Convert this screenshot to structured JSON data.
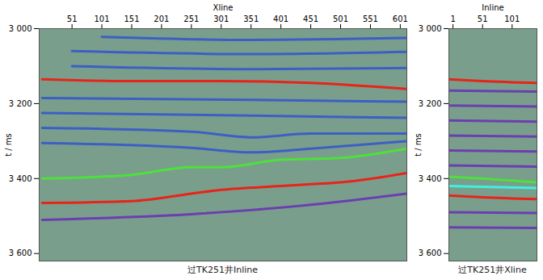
{
  "chart_data": [
    {
      "type": "line",
      "xlabel": "Xline",
      "ylabel": "t / ms",
      "caption": "过TK251井Inline",
      "color": "#7a9e8c",
      "xlim": [
        -4,
        612
      ],
      "xticks": [
        51,
        101,
        151,
        201,
        251,
        301,
        351,
        401,
        451,
        501,
        551,
        601
      ],
      "ylim": [
        3000,
        3620
      ],
      "yticks": [
        {
          "value": 3000,
          "label": "3 000"
        },
        {
          "value": 3200,
          "label": "3 200"
        },
        {
          "value": 3400,
          "label": "3 400"
        },
        {
          "value": 3600,
          "label": "3 600"
        }
      ],
      "series": [
        {
          "color": "#3d5fc4",
          "x": [
            101,
            351,
            612
          ],
          "values": [
            3022,
            3030,
            3025
          ]
        },
        {
          "color": "#3d5fc4",
          "x": [
            51,
            351,
            612
          ],
          "values": [
            3060,
            3068,
            3062
          ]
        },
        {
          "color": "#3d5fc4",
          "x": [
            51,
            351,
            612
          ],
          "values": [
            3100,
            3108,
            3105
          ]
        },
        {
          "color": "#3d5fc4",
          "x": [
            1,
            351,
            612
          ],
          "values": [
            3185,
            3190,
            3195
          ]
        },
        {
          "color": "#3d5fc4",
          "x": [
            1,
            351,
            612
          ],
          "values": [
            3225,
            3232,
            3238
          ]
        },
        {
          "color": "#3d5fc4",
          "x": [
            1,
            251,
            351,
            451,
            612
          ],
          "values": [
            3265,
            3275,
            3290,
            3280,
            3280
          ]
        },
        {
          "color": "#3d5fc4",
          "x": [
            1,
            251,
            351,
            451,
            612
          ],
          "values": [
            3305,
            3318,
            3330,
            3320,
            3300
          ]
        },
        {
          "color": "#6a3fb0",
          "x": [
            1,
            251,
            451,
            612
          ],
          "values": [
            3510,
            3495,
            3470,
            3440
          ]
        },
        {
          "color": "#e8241a",
          "x": [
            1,
            151,
            301,
            451,
            612
          ],
          "values": [
            3135,
            3140,
            3140,
            3145,
            3161
          ]
        },
        {
          "color": "#4ee03c",
          "x": [
            1,
            151,
            251,
            301,
            401,
            501,
            612
          ],
          "values": [
            3400,
            3390,
            3370,
            3370,
            3350,
            3345,
            3320
          ]
        },
        {
          "color": "#e8241a",
          "x": [
            1,
            151,
            251,
            301,
            401,
            451,
            501,
            612
          ],
          "values": [
            3465,
            3460,
            3440,
            3430,
            3420,
            3415,
            3410,
            3385
          ]
        }
      ]
    },
    {
      "type": "line",
      "xlabel": "Inline",
      "ylabel": "t / ms",
      "caption": "过TK251井Xline",
      "color": "#7a9e8c",
      "xlim": [
        -6,
        143
      ],
      "xticks": [
        1,
        51,
        101
      ],
      "ylim": [
        3000,
        3620
      ],
      "yticks": [
        {
          "value": 3000,
          "label": "3 000"
        },
        {
          "value": 3200,
          "label": "3 200"
        },
        {
          "value": 3400,
          "label": "3 400"
        },
        {
          "value": 3600,
          "label": "3 600"
        }
      ],
      "series": [
        {
          "color": "#6a3fb0",
          "x": [
            -6,
            143
          ],
          "values": [
            3165,
            3168
          ]
        },
        {
          "color": "#6a3fb0",
          "x": [
            -6,
            143
          ],
          "values": [
            3205,
            3208
          ]
        },
        {
          "color": "#6a3fb0",
          "x": [
            -6,
            143
          ],
          "values": [
            3245,
            3248
          ]
        },
        {
          "color": "#6a3fb0",
          "x": [
            -6,
            143
          ],
          "values": [
            3285,
            3288
          ]
        },
        {
          "color": "#6a3fb0",
          "x": [
            -6,
            143
          ],
          "values": [
            3325,
            3328
          ]
        },
        {
          "color": "#6a3fb0",
          "x": [
            -6,
            143
          ],
          "values": [
            3365,
            3368
          ]
        },
        {
          "color": "#6a3fb0",
          "x": [
            -6,
            143
          ],
          "values": [
            3490,
            3492
          ]
        },
        {
          "color": "#6a3fb0",
          "x": [
            -6,
            143
          ],
          "values": [
            3530,
            3532
          ]
        },
        {
          "color": "#e8241a",
          "x": [
            -6,
            51,
            143
          ],
          "values": [
            3135,
            3140,
            3145
          ]
        },
        {
          "color": "#4ee03c",
          "x": [
            -6,
            51,
            143
          ],
          "values": [
            3395,
            3400,
            3410
          ]
        },
        {
          "color": "#3ff0e0",
          "x": [
            -6,
            51,
            143
          ],
          "values": [
            3420,
            3422,
            3425
          ]
        },
        {
          "color": "#e8241a",
          "x": [
            -6,
            51,
            143
          ],
          "values": [
            3445,
            3450,
            3455
          ]
        }
      ]
    }
  ]
}
